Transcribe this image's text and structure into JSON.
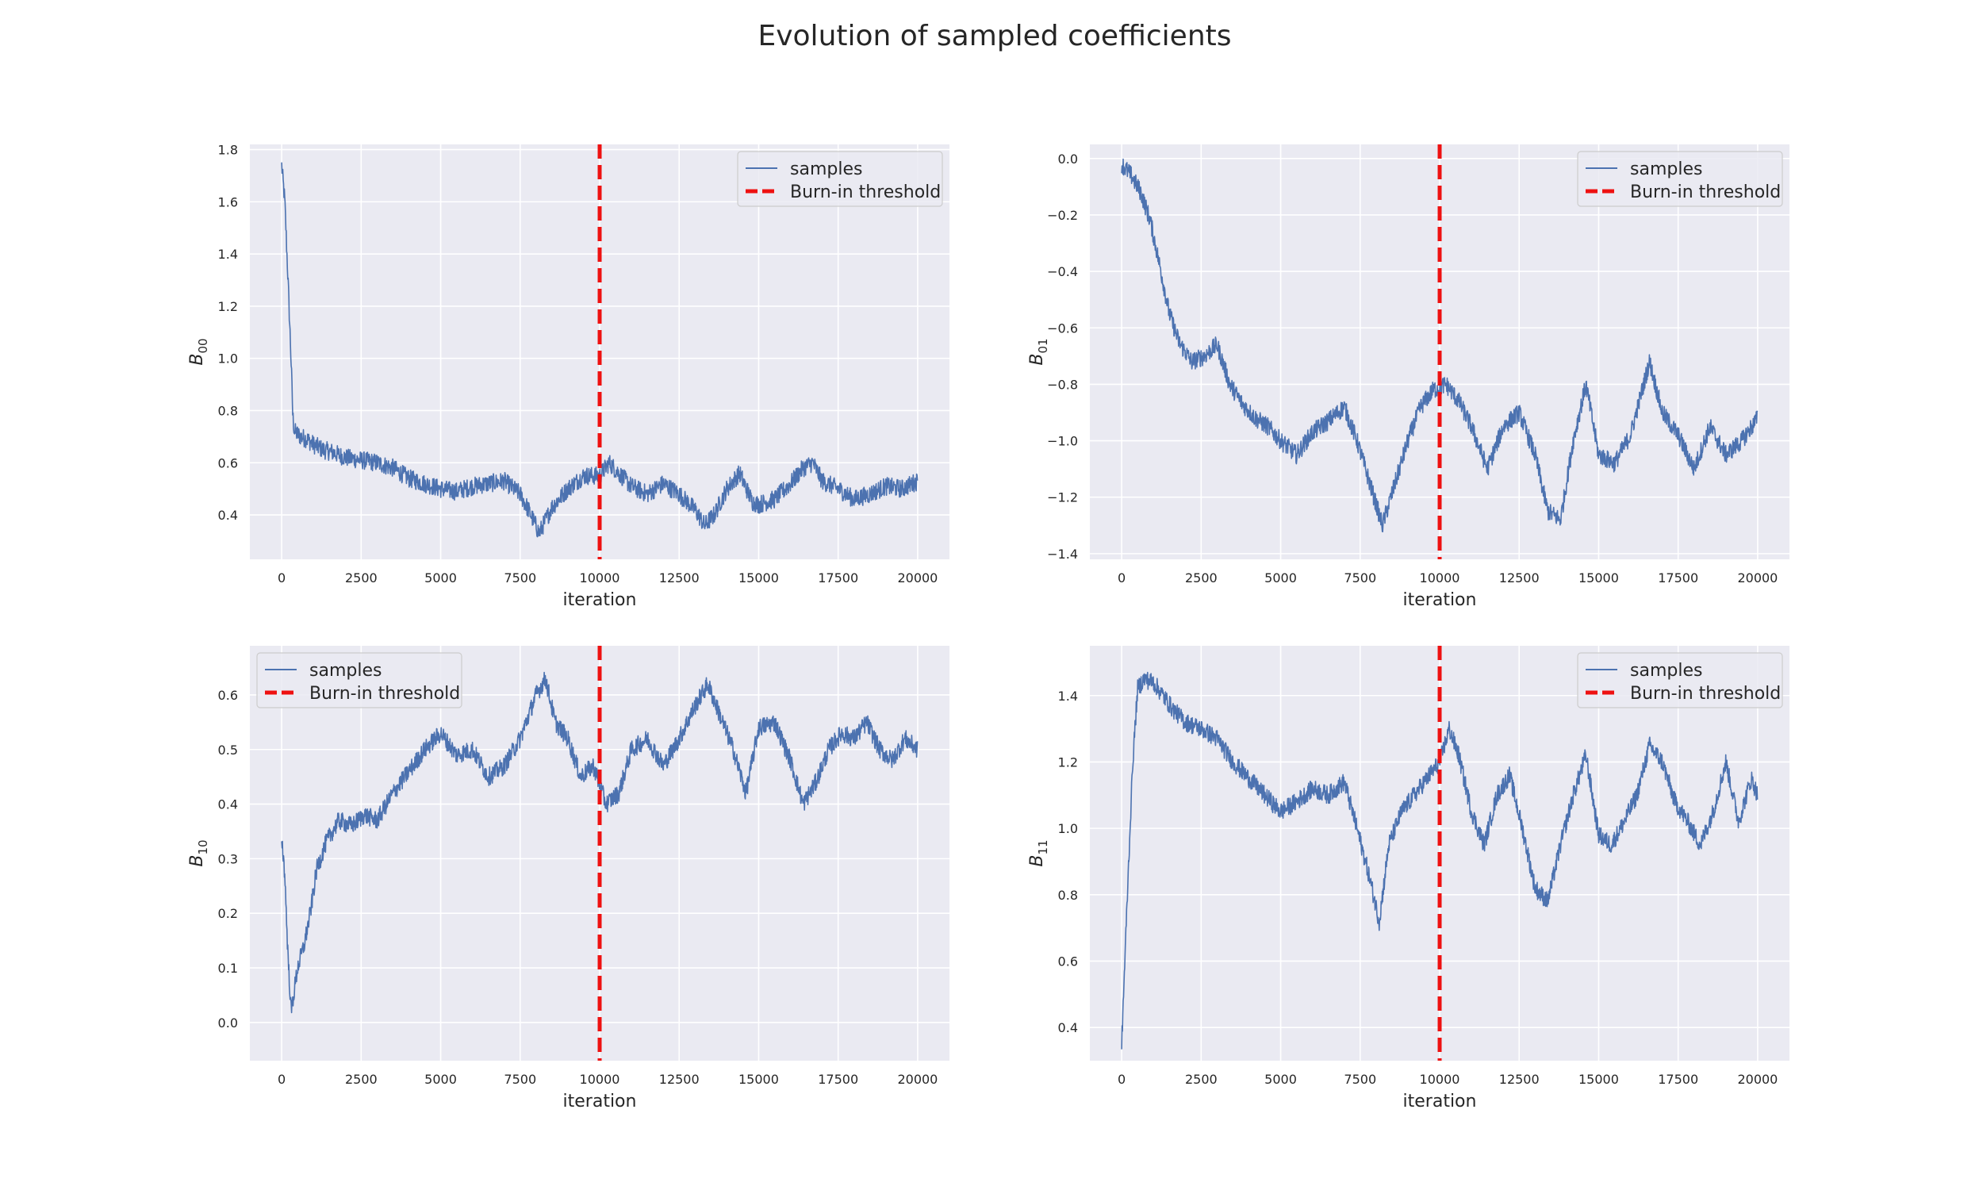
{
  "title": "Evolution of sampled coefficients",
  "colors": {
    "background": "#eaeaf2",
    "grid": "#ffffff",
    "samples": "#4c72b0",
    "threshold": "#ee1111",
    "text": "#262626"
  },
  "chart_data": [
    {
      "type": "line",
      "ylabel_base": "B",
      "ylabel_sub": "00",
      "xlabel": "iteration",
      "xlim": [
        -1000,
        21000
      ],
      "ylim": [
        0.23,
        1.82
      ],
      "xticks": [
        0,
        2500,
        5000,
        7500,
        10000,
        12500,
        15000,
        17500,
        20000
      ],
      "yticks": [
        0.4,
        0.6,
        0.8,
        1.0,
        1.2,
        1.4,
        1.6,
        1.8
      ],
      "ytick_labels": [
        "0.4",
        "0.6",
        "0.8",
        "1.0",
        "1.2",
        "1.4",
        "1.6",
        "1.8"
      ],
      "legend_position": "upper right",
      "legend": [
        "samples",
        "Burn-in threshold"
      ],
      "threshold_x": 10000,
      "series": [
        {
          "x": [
            0,
            100,
            200,
            300,
            350,
            400,
            600,
            800,
            1000,
            1300,
            1600,
            2000,
            2500,
            3000,
            3500,
            4000,
            4500,
            5000,
            5500,
            6000,
            6500,
            7000,
            7500,
            7800,
            8100,
            8500,
            9000,
            9500,
            10000,
            10300,
            10600,
            11000,
            11500,
            12000,
            12500,
            13000,
            13300,
            13600,
            14000,
            14400,
            14800,
            15000,
            15500,
            16000,
            16400,
            16700,
            17000,
            17500,
            18000,
            18500,
            19000,
            19500,
            20000
          ],
          "y": [
            1.74,
            1.6,
            1.3,
            0.98,
            0.78,
            0.72,
            0.7,
            0.69,
            0.67,
            0.65,
            0.64,
            0.62,
            0.61,
            0.6,
            0.58,
            0.54,
            0.52,
            0.5,
            0.49,
            0.51,
            0.52,
            0.53,
            0.48,
            0.41,
            0.33,
            0.43,
            0.5,
            0.55,
            0.55,
            0.6,
            0.56,
            0.51,
            0.48,
            0.52,
            0.48,
            0.42,
            0.36,
            0.4,
            0.5,
            0.56,
            0.45,
            0.44,
            0.46,
            0.52,
            0.58,
            0.6,
            0.53,
            0.5,
            0.46,
            0.48,
            0.51,
            0.5,
            0.53
          ]
        }
      ]
    },
    {
      "type": "line",
      "ylabel_base": "B",
      "ylabel_sub": "01",
      "xlabel": "iteration",
      "xlim": [
        -1000,
        21000
      ],
      "ylim": [
        -1.42,
        0.05
      ],
      "xticks": [
        0,
        2500,
        5000,
        7500,
        10000,
        12500,
        15000,
        17500,
        20000
      ],
      "yticks": [
        -1.4,
        -1.2,
        -1.0,
        -0.8,
        -0.6,
        -0.4,
        -0.2,
        0.0
      ],
      "ytick_labels": [
        "−1.4",
        "−1.2",
        "−1.0",
        "−0.8",
        "−0.6",
        "−0.4",
        "−0.2",
        "0.0"
      ],
      "legend_position": "upper right",
      "legend": [
        "samples",
        "Burn-in threshold"
      ],
      "threshold_x": 10000,
      "series": [
        {
          "x": [
            0,
            300,
            600,
            900,
            1200,
            1500,
            1800,
            2200,
            2600,
            3000,
            3400,
            3800,
            4200,
            4600,
            5000,
            5500,
            6000,
            6500,
            7000,
            7400,
            7800,
            8200,
            8600,
            9000,
            9400,
            9800,
            10200,
            10600,
            11000,
            11500,
            12000,
            12500,
            13000,
            13400,
            13800,
            14200,
            14600,
            15000,
            15500,
            16000,
            16300,
            16600,
            17000,
            17500,
            18000,
            18500,
            19000,
            19500,
            20000
          ],
          "y": [
            -0.02,
            -0.06,
            -0.12,
            -0.22,
            -0.38,
            -0.55,
            -0.65,
            -0.72,
            -0.7,
            -0.66,
            -0.8,
            -0.87,
            -0.92,
            -0.95,
            -1.0,
            -1.05,
            -0.97,
            -0.93,
            -0.88,
            -1.0,
            -1.15,
            -1.3,
            -1.15,
            -1.0,
            -0.88,
            -0.82,
            -0.8,
            -0.86,
            -0.95,
            -1.1,
            -0.95,
            -0.9,
            -1.05,
            -1.25,
            -1.28,
            -1.0,
            -0.8,
            -1.05,
            -1.08,
            -0.98,
            -0.85,
            -0.72,
            -0.9,
            -0.98,
            -1.1,
            -0.95,
            -1.05,
            -1.0,
            -0.92
          ]
        }
      ]
    },
    {
      "type": "line",
      "ylabel_base": "B",
      "ylabel_sub": "10",
      "xlabel": "iteration",
      "xlim": [
        -1000,
        21000
      ],
      "ylim": [
        -0.07,
        0.69
      ],
      "xticks": [
        0,
        2500,
        5000,
        7500,
        10000,
        12500,
        15000,
        17500,
        20000
      ],
      "yticks": [
        0.0,
        0.1,
        0.2,
        0.3,
        0.4,
        0.5,
        0.6
      ],
      "ytick_labels": [
        "0.0",
        "0.1",
        "0.2",
        "0.3",
        "0.4",
        "0.5",
        "0.6"
      ],
      "legend_position": "upper left",
      "legend": [
        "samples",
        "Burn-in threshold"
      ],
      "threshold_x": 10000,
      "series": [
        {
          "x": [
            0,
            100,
            200,
            300,
            500,
            700,
            900,
            1100,
            1400,
            1800,
            2200,
            2600,
            3000,
            3500,
            4000,
            4500,
            5000,
            5500,
            6000,
            6500,
            7000,
            7500,
            8000,
            8300,
            8600,
            9000,
            9400,
            9800,
            10200,
            10600,
            11000,
            11500,
            12000,
            12500,
            13000,
            13400,
            13800,
            14200,
            14600,
            15000,
            15500,
            16000,
            16400,
            16800,
            17200,
            17600,
            18000,
            18400,
            18800,
            19200,
            19600,
            20000
          ],
          "y": [
            0.34,
            0.27,
            0.12,
            0.02,
            0.1,
            0.14,
            0.2,
            0.28,
            0.33,
            0.37,
            0.36,
            0.38,
            0.37,
            0.42,
            0.46,
            0.5,
            0.53,
            0.49,
            0.5,
            0.45,
            0.47,
            0.52,
            0.6,
            0.63,
            0.55,
            0.52,
            0.45,
            0.47,
            0.4,
            0.42,
            0.5,
            0.52,
            0.47,
            0.52,
            0.58,
            0.62,
            0.56,
            0.5,
            0.42,
            0.54,
            0.55,
            0.48,
            0.4,
            0.44,
            0.5,
            0.53,
            0.52,
            0.55,
            0.5,
            0.48,
            0.52,
            0.5
          ]
        }
      ]
    },
    {
      "type": "line",
      "ylabel_base": "B",
      "ylabel_sub": "11",
      "xlabel": "iteration",
      "xlim": [
        -1000,
        21000
      ],
      "ylim": [
        0.3,
        1.55
      ],
      "xticks": [
        0,
        2500,
        5000,
        7500,
        10000,
        12500,
        15000,
        17500,
        20000
      ],
      "yticks": [
        0.4,
        0.6,
        0.8,
        1.0,
        1.2,
        1.4
      ],
      "ytick_labels": [
        "0.4",
        "0.6",
        "0.8",
        "1.0",
        "1.2",
        "1.4"
      ],
      "legend_position": "upper right",
      "legend": [
        "samples",
        "Burn-in threshold"
      ],
      "threshold_x": 10000,
      "series": [
        {
          "x": [
            0,
            100,
            200,
            350,
            500,
            700,
            1000,
            1300,
            1600,
            2000,
            2500,
            3000,
            3500,
            4000,
            4500,
            5000,
            5500,
            6000,
            6500,
            7000,
            7400,
            7800,
            8100,
            8400,
            8800,
            9200,
            9600,
            10000,
            10300,
            10600,
            11000,
            11400,
            11800,
            12200,
            12600,
            13000,
            13400,
            13800,
            14200,
            14600,
            15000,
            15400,
            15800,
            16200,
            16600,
            17000,
            17400,
            17800,
            18200,
            18600,
            19000,
            19400,
            19800,
            20000
          ],
          "y": [
            0.35,
            0.6,
            0.85,
            1.2,
            1.42,
            1.45,
            1.44,
            1.4,
            1.36,
            1.32,
            1.3,
            1.27,
            1.2,
            1.15,
            1.1,
            1.05,
            1.08,
            1.12,
            1.1,
            1.14,
            1.0,
            0.85,
            0.72,
            0.95,
            1.05,
            1.1,
            1.15,
            1.2,
            1.3,
            1.22,
            1.05,
            0.95,
            1.1,
            1.16,
            1.0,
            0.82,
            0.78,
            0.95,
            1.1,
            1.22,
            0.98,
            0.95,
            1.02,
            1.1,
            1.25,
            1.2,
            1.08,
            1.02,
            0.95,
            1.05,
            1.2,
            1.02,
            1.15,
            1.1
          ]
        }
      ]
    }
  ]
}
